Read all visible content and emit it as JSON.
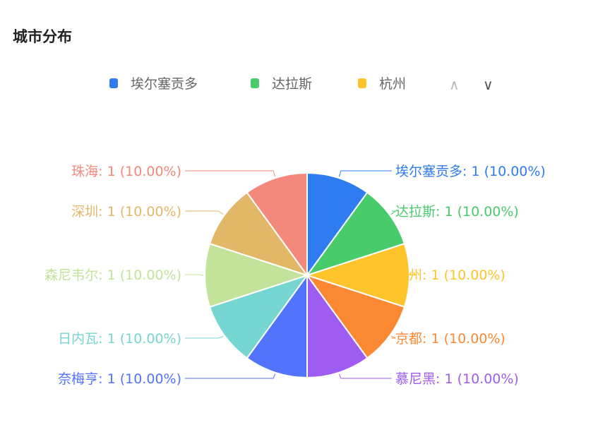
{
  "chart_data": {
    "type": "pie",
    "title": "城市分布",
    "categories": [
      "埃尔塞贡多",
      "达拉斯",
      "杭州",
      "京都",
      "慕尼黑",
      "奈梅亨",
      "日内瓦",
      "森尼韦尔",
      "深圳",
      "珠海"
    ],
    "values": [
      1,
      1,
      1,
      1,
      1,
      1,
      1,
      1,
      1,
      1
    ],
    "percents": [
      "10.00%",
      "10.00%",
      "10.00%",
      "10.00%",
      "10.00%",
      "10.00%",
      "10.00%",
      "10.00%",
      "10.00%",
      "10.00%"
    ],
    "colors": [
      "#2f7cf0",
      "#48cb6b",
      "#fdc42c",
      "#fb8933",
      "#9f5cf0",
      "#5273fb",
      "#76d6d2",
      "#c3e39a",
      "#e2b868",
      "#f3887c"
    ],
    "legend": {
      "placement": "top",
      "visible": [
        "埃尔塞贡多",
        "达拉斯",
        "杭州"
      ],
      "pager": [
        "∧",
        "∨"
      ]
    }
  }
}
